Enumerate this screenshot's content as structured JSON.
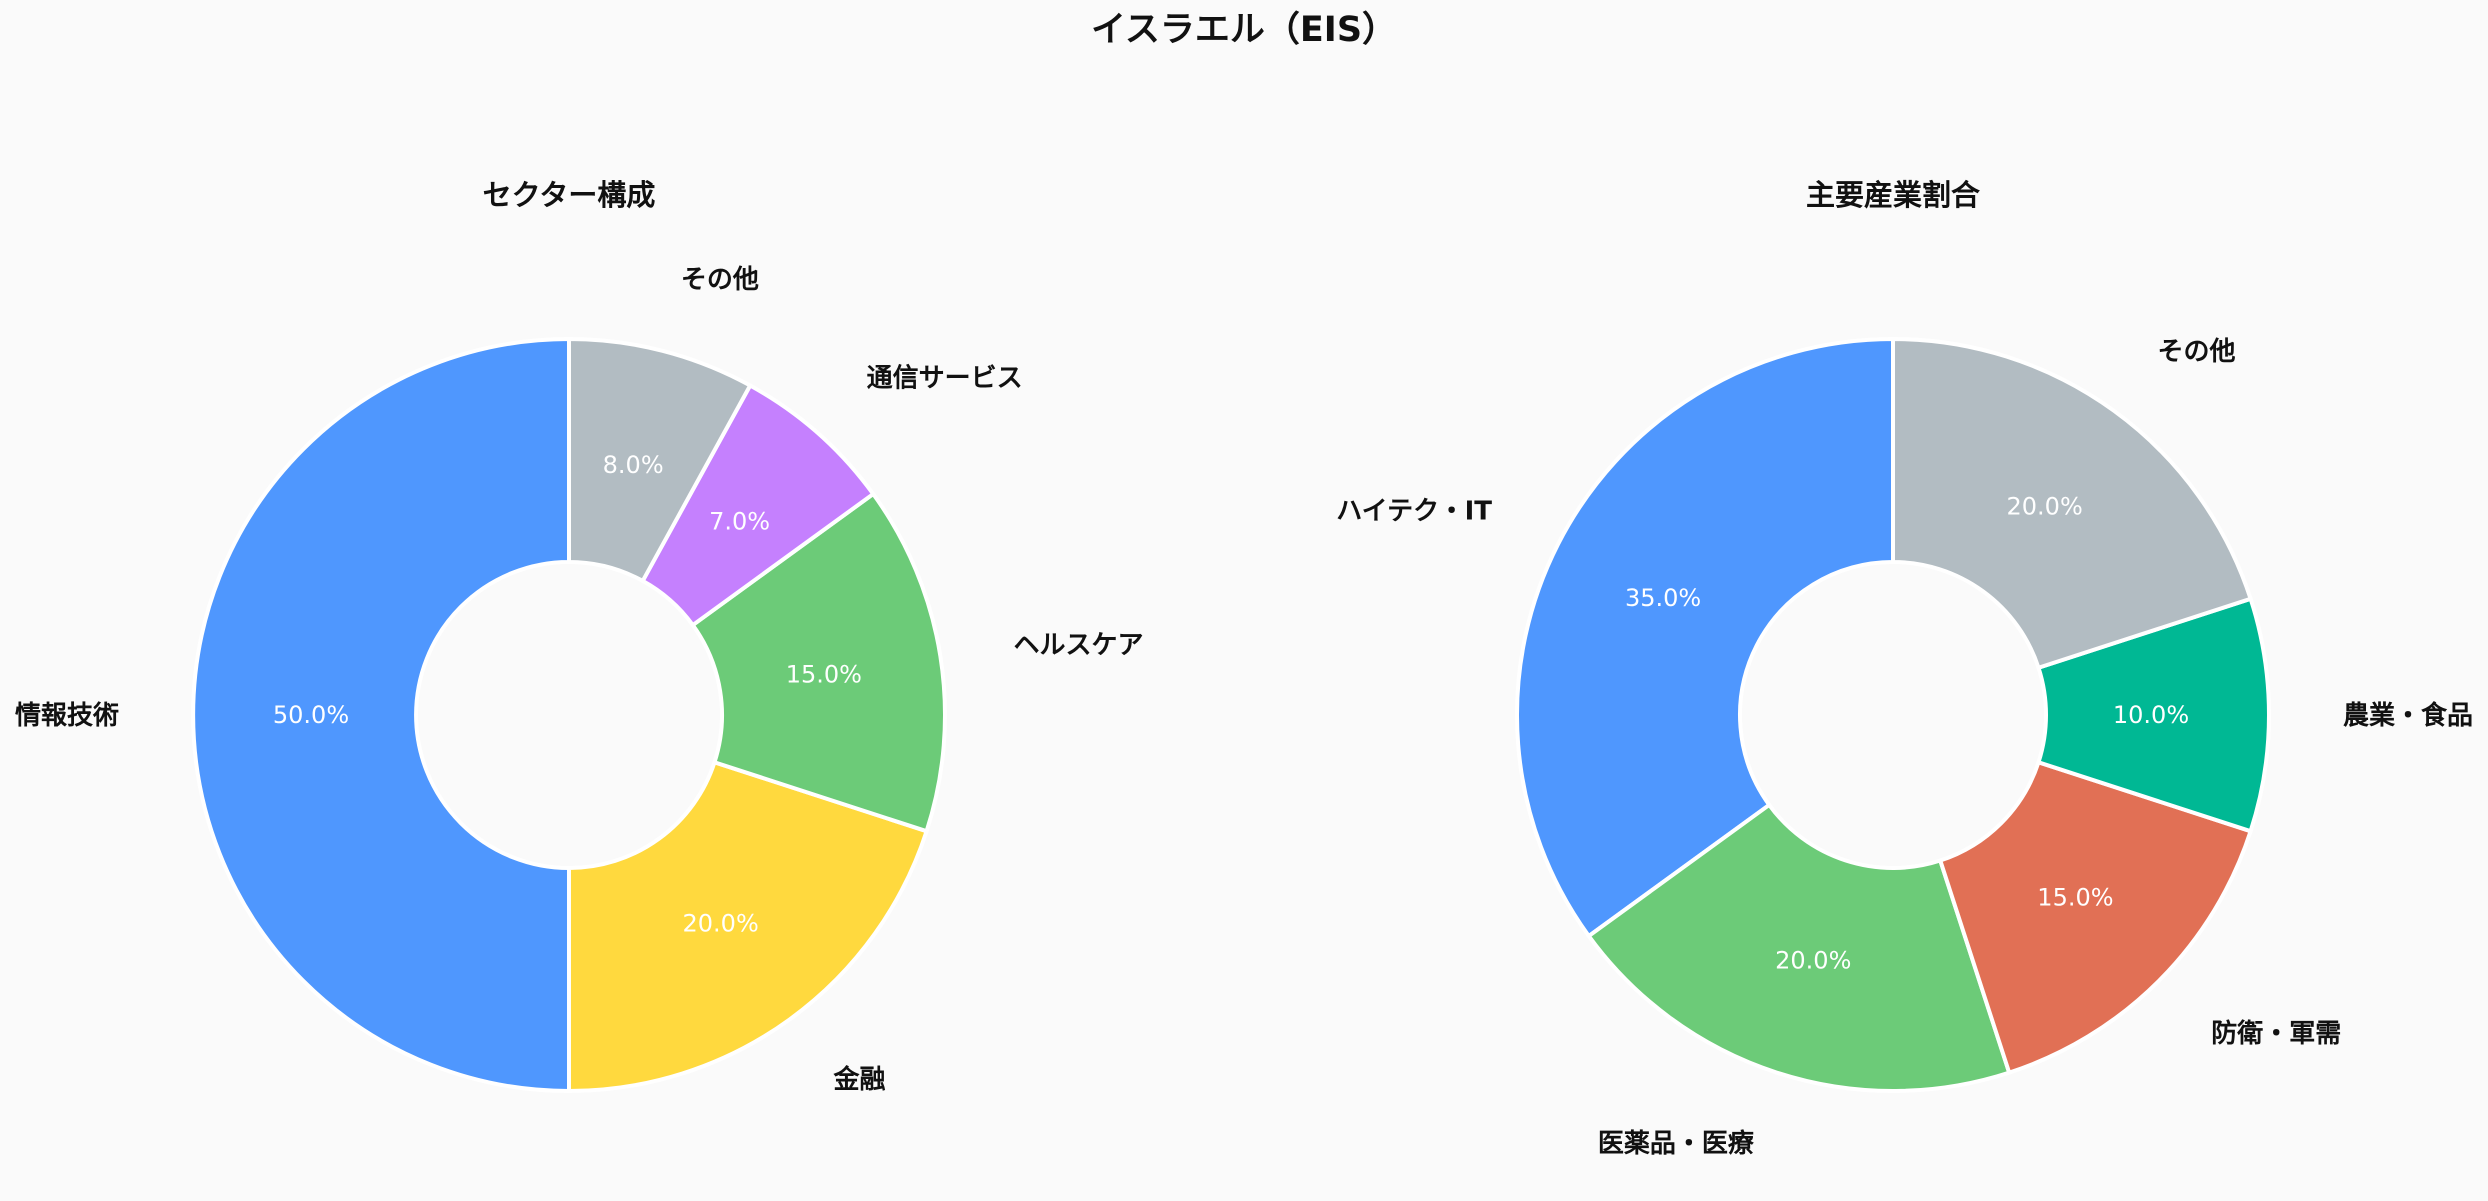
{
  "figure": {
    "title": "イスラエル（EIS）"
  },
  "chart_data": [
    {
      "type": "pie",
      "title": "セクター構成",
      "donut": true,
      "categories": [
        "情報技術",
        "金融",
        "ヘルスケア",
        "通信サービス",
        "その他"
      ],
      "values": [
        50.0,
        20.0,
        15.0,
        7.0,
        8.0
      ],
      "percent_labels": [
        "50.0%",
        "20.0%",
        "15.0%",
        "7.0%",
        "8.0%"
      ],
      "colors": [
        "#4f97fe",
        "#ffd93e",
        "#6ccb78",
        "#c580fe",
        "#b2bcc2"
      ]
    },
    {
      "type": "pie",
      "title": "主要産業割合",
      "donut": true,
      "categories": [
        "ハイテク・IT",
        "医薬品・医療",
        "防衛・軍需",
        "農業・食品",
        "その他"
      ],
      "values": [
        35.0,
        20.0,
        15.0,
        10.0,
        20.0
      ],
      "percent_labels": [
        "35.0%",
        "20.0%",
        "15.0%",
        "10.0%",
        "20.0%"
      ],
      "colors": [
        "#4f97fe",
        "#6ccb78",
        "#e17055",
        "#00b894",
        "#b2bcc2"
      ]
    }
  ]
}
